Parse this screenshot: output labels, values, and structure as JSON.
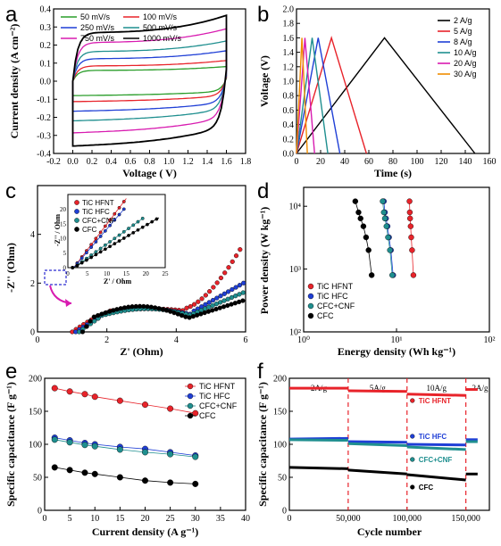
{
  "figure": {
    "panel_letters": [
      "a",
      "b",
      "c",
      "d",
      "e",
      "f"
    ]
  },
  "colors": {
    "black": "#000000",
    "red": "#e8232a",
    "blue": "#1f3fd6",
    "green": "#2a9d2a",
    "teal": "#1f8f8f",
    "magenta": "#d81bb0",
    "orange": "#f08c00",
    "steel": "#2f7fb0",
    "gray": "#9a9a9a",
    "dashred": "#e8232a"
  },
  "chart_data": [
    {
      "panel": "a",
      "type": "line",
      "xlabel": "Voltage ( V)",
      "ylabel": "Current density (A cm⁻²)",
      "xlim": [
        -0.2,
        1.8
      ],
      "ylim": [
        -0.4,
        0.4
      ],
      "xticks": [
        "-0.2",
        "0.0",
        "0.2",
        "0.4",
        "0.6",
        "0.8",
        "1.0",
        "1.2",
        "1.4",
        "1.6",
        "1.8"
      ],
      "yticks": [
        "-0.4",
        "-0.3",
        "-0.2",
        "-0.1",
        "0.0",
        "0.1",
        "0.2",
        "0.3",
        "0.4"
      ],
      "legend_position": "top-left",
      "series": [
        {
          "name": "50 mV/s",
          "color": "#2a9d2a",
          "amp": 0.06
        },
        {
          "name": "100 mV/s",
          "color": "#e8232a",
          "amp": 0.085
        },
        {
          "name": "250 mV/s",
          "color": "#1f3fd6",
          "amp": 0.125
        },
        {
          "name": "500 mV/s",
          "color": "#1f8f8f",
          "amp": 0.165
        },
        {
          "name": "750 mV/s",
          "color": "#d81bb0",
          "amp": 0.215
        },
        {
          "name": "1000 mV/s",
          "color": "#000000",
          "amp": 0.27
        }
      ]
    },
    {
      "panel": "b",
      "type": "line",
      "xlabel": "Time (s)",
      "ylabel": "Voltage (V)",
      "xlim": [
        0,
        160
      ],
      "ylim": [
        0,
        2.0
      ],
      "xticks": [
        "0",
        "20",
        "40",
        "60",
        "80",
        "100",
        "120",
        "140",
        "160"
      ],
      "yticks": [
        "0.0",
        "0.2",
        "0.4",
        "0.6",
        "0.8",
        "1.0",
        "1.2",
        "1.4",
        "1.6",
        "1.8",
        "2.0"
      ],
      "legend_position": "top-right",
      "series": [
        {
          "name": "2 A/g",
          "color": "#000000",
          "peak": 73,
          "end": 148
        },
        {
          "name": "5 A/g",
          "color": "#e8232a",
          "peak": 29,
          "end": 58
        },
        {
          "name": "8 A/g",
          "color": "#1f3fd6",
          "peak": 18,
          "end": 36
        },
        {
          "name": "10 A/g",
          "color": "#1f8f8f",
          "peak": 13,
          "end": 26
        },
        {
          "name": "20 A/g",
          "color": "#d81bb0",
          "peak": 7,
          "end": 15
        },
        {
          "name": "30 A/g",
          "color": "#f08c00",
          "peak": 4.5,
          "end": 9
        }
      ]
    },
    {
      "panel": "c",
      "type": "scatter",
      "xlabel": "Z' (Ohm)",
      "ylabel": "-Z'' (Ohm)",
      "xlim": [
        0,
        6
      ],
      "ylim": [
        0,
        6
      ],
      "xticks": [
        "0",
        "2",
        "4",
        "6"
      ],
      "yticks": [
        "0",
        "2",
        "4"
      ],
      "inset": {
        "xlabel": "Z' / Ohm",
        "ylabel": "-Z'' / Ohm",
        "xlim": [
          0,
          25
        ],
        "ylim": [
          0,
          25
        ],
        "xticks": [
          "0",
          "5",
          "10",
          "15",
          "20",
          "25"
        ],
        "yticks": [
          "0",
          "5",
          "10",
          "15",
          "20"
        ]
      },
      "legend_position": "top-left",
      "series": [
        {
          "name": "TiC HFNT",
          "color": "#e8232a"
        },
        {
          "name": "TiC HFC",
          "color": "#1f3fd6"
        },
        {
          "name": "CFC+CNF",
          "color": "#1f8f8f"
        },
        {
          "name": "CFC",
          "color": "#000000"
        }
      ]
    },
    {
      "panel": "d",
      "type": "scatter",
      "xlabel": "Energy density (Wh kg⁻¹)",
      "ylabel": "Power density (W kg⁻¹)",
      "xscale": "log",
      "yscale": "log",
      "xlim": [
        1,
        100
      ],
      "ylim": [
        100,
        20000
      ],
      "xticks": [
        "10⁰",
        "10¹",
        "10²"
      ],
      "yticks": [
        "10²",
        "10³",
        "10⁴"
      ],
      "legend_position": "bottom-left",
      "series": [
        {
          "name": "TiC HFNT",
          "color": "#e8232a",
          "x": [
            13.8,
            13.9,
            14.0,
            14.2,
            14.4,
            14.7,
            15.2
          ],
          "y": [
            12000,
            8000,
            6400,
            4800,
            3200,
            2000,
            800
          ]
        },
        {
          "name": "TiC HFC",
          "color": "#1f3fd6",
          "x": [
            7.3,
            7.5,
            7.7,
            8.0,
            8.3,
            8.7,
            9.2
          ],
          "y": [
            12000,
            8000,
            6400,
            4800,
            3200,
            2000,
            800
          ]
        },
        {
          "name": "CFC+CNF",
          "color": "#1f8f8f",
          "x": [
            7.1,
            7.3,
            7.5,
            7.8,
            8.1,
            8.5,
            9.0
          ],
          "y": [
            12000,
            8000,
            6400,
            4800,
            3200,
            2000,
            800
          ]
        },
        {
          "name": "CFC",
          "color": "#000000",
          "x": [
            3.6,
            3.9,
            4.1,
            4.4,
            4.7,
            5.0,
            5.4
          ],
          "y": [
            12000,
            8000,
            6400,
            4800,
            3200,
            2000,
            800
          ]
        }
      ]
    },
    {
      "panel": "e",
      "type": "line",
      "xlabel": "Current density (A g⁻¹)",
      "ylabel": "Specific capacitance (F g⁻¹)",
      "xlim": [
        0,
        40
      ],
      "ylim": [
        0,
        200
      ],
      "xticks": [
        "0",
        "5",
        "10",
        "15",
        "20",
        "25",
        "30",
        "35",
        "40"
      ],
      "yticks": [
        "0",
        "50",
        "100",
        "150",
        "200"
      ],
      "legend_position": "top-right",
      "x": [
        2,
        5,
        8,
        10,
        15,
        20,
        25,
        30
      ],
      "series": [
        {
          "name": "TiC HFNT",
          "color": "#e8232a",
          "values": [
            185,
            180,
            176,
            172,
            166,
            160,
            154,
            147
          ]
        },
        {
          "name": "TiC HFC",
          "color": "#1f3fd6",
          "values": [
            110,
            106,
            102,
            100,
            96,
            93,
            88,
            83
          ]
        },
        {
          "name": "CFC+CNF",
          "color": "#1f8f8f",
          "values": [
            107,
            103,
            99,
            97,
            92,
            88,
            85,
            81
          ]
        },
        {
          "name": "CFC",
          "color": "#000000",
          "values": [
            65,
            61,
            57,
            55,
            50,
            45,
            42,
            40
          ]
        }
      ]
    },
    {
      "panel": "f",
      "type": "line",
      "xlabel": "Cycle number",
      "ylabel": "Specific capacitance (F g⁻¹)",
      "xlim": [
        0,
        170000
      ],
      "ylim": [
        0,
        200
      ],
      "xticks": [
        "0",
        "50,000",
        "100,000",
        "150,000"
      ],
      "yticks": [
        "0",
        "50",
        "100",
        "150",
        "200"
      ],
      "region_labels": [
        "2A/g",
        "5A/g",
        "10A/g",
        "2A/g"
      ],
      "boundaries": [
        50000,
        100000,
        150000
      ],
      "legend_position": "right",
      "series": [
        {
          "name": "TiC HFNT",
          "color": "#e8232a",
          "segments": [
            [
              185,
              185
            ],
            [
              181,
              180
            ],
            [
              176,
              174
            ],
            [
              183,
              183
            ]
          ]
        },
        {
          "name": "TiC HFC",
          "color": "#1f3fd6",
          "segments": [
            [
              108,
              109
            ],
            [
              104,
              103
            ],
            [
              100,
              99
            ],
            [
              107,
              107
            ]
          ]
        },
        {
          "name": "CFC+CNF",
          "color": "#1f8f8f",
          "segments": [
            [
              107,
              106
            ],
            [
              101,
              98
            ],
            [
              96,
              92
            ],
            [
              104,
              104
            ]
          ]
        },
        {
          "name": "CFC",
          "color": "#000000",
          "segments": [
            [
              65,
              63
            ],
            [
              61,
              55
            ],
            [
              54,
              46
            ],
            [
              55,
              55
            ]
          ]
        }
      ]
    }
  ]
}
